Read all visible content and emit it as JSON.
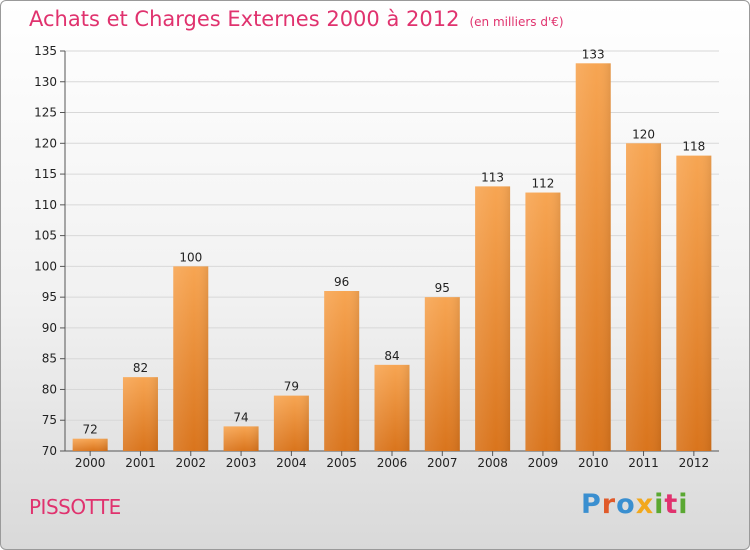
{
  "header": {
    "title": "Achats et Charges Externes 2000 à 2012",
    "subtitle": "(en milliers d'€)"
  },
  "footer": {
    "place": "PISSOTTE",
    "logo": "Proxiti"
  },
  "colors": {
    "title": "#e0326e",
    "bar_top": "#f7a552",
    "bar_bottom": "#d9741c",
    "grid": "#d8d8d8"
  },
  "chart_data": {
    "type": "bar",
    "categories": [
      "2000",
      "2001",
      "2002",
      "2003",
      "2004",
      "2005",
      "2006",
      "2007",
      "2008",
      "2009",
      "2010",
      "2011",
      "2012"
    ],
    "values": [
      72,
      82,
      100,
      74,
      79,
      96,
      84,
      95,
      113,
      112,
      133,
      120,
      118
    ],
    "ylim": [
      70,
      135
    ],
    "yticks": [
      70,
      75,
      80,
      85,
      90,
      95,
      100,
      105,
      110,
      115,
      120,
      125,
      130,
      135
    ],
    "grid": true,
    "legend": "none"
  }
}
